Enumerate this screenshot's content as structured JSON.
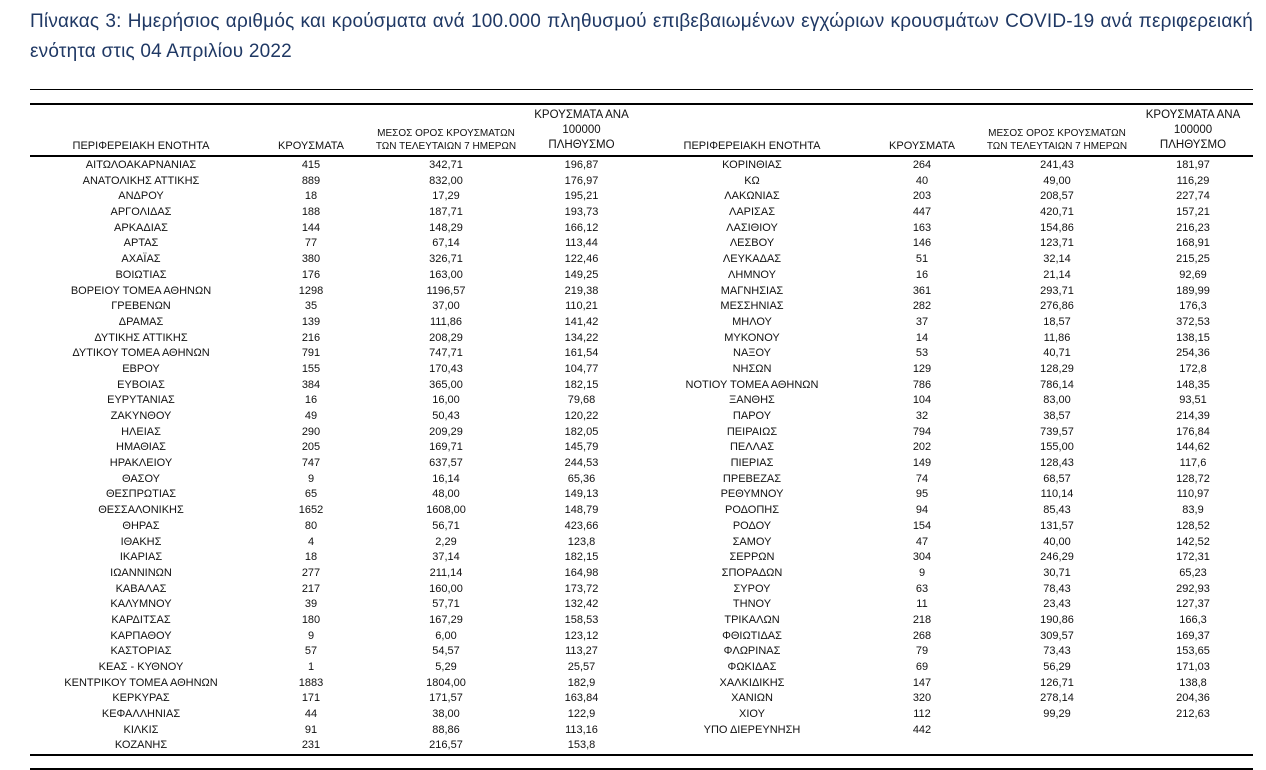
{
  "title": "Πίνακας 3:  Ημερήσιος αριθμός και κρούσματα ανά 100.000 πληθυσμού επιβεβαιωμένων εγχώριων κρουσμάτων COVID-19 ανά περιφερειακή ενότητα στις 04 Απριλίου 2022",
  "colors": {
    "title_text": "#1f3864",
    "body_text": "#111111",
    "rule": "#000000",
    "background": "#ffffff"
  },
  "table": {
    "headers": {
      "region": "ΠΕΡΙΦΕΡΕΙΑΚΗ ΕΝΟΤΗΤΑ",
      "cases": "ΚΡΟΥΣΜΑΤΑ",
      "avg7": "ΜΕΣΟΣ ΟΡΟΣ ΚΡΟΥΣΜΑΤΩΝ\nΤΩΝ ΤΕΛΕΥΤΑΙΩΝ 7 ΗΜΕΡΩΝ",
      "per100k": "ΚΡΟΥΣΜΑΤΑ ΑΝΑ 100000\nΠΛΗΘΥΣΜΟ"
    },
    "left_rows": [
      [
        "ΑΙΤΩΛΟΑΚΑΡΝΑΝΙΑΣ",
        "415",
        "342,71",
        "196,87"
      ],
      [
        "ΑΝΑΤΟΛΙΚΗΣ ΑΤΤΙΚΗΣ",
        "889",
        "832,00",
        "176,97"
      ],
      [
        "ΑΝΔΡΟΥ",
        "18",
        "17,29",
        "195,21"
      ],
      [
        "ΑΡΓΟΛΙΔΑΣ",
        "188",
        "187,71",
        "193,73"
      ],
      [
        "ΑΡΚΑΔΙΑΣ",
        "144",
        "148,29",
        "166,12"
      ],
      [
        "ΑΡΤΑΣ",
        "77",
        "67,14",
        "113,44"
      ],
      [
        "ΑΧΑΪΑΣ",
        "380",
        "326,71",
        "122,46"
      ],
      [
        "ΒΟΙΩΤΙΑΣ",
        "176",
        "163,00",
        "149,25"
      ],
      [
        "ΒΟΡΕΙΟΥ ΤΟΜΕΑ ΑΘΗΝΩΝ",
        "1298",
        "1196,57",
        "219,38"
      ],
      [
        "ΓΡΕΒΕΝΩΝ",
        "35",
        "37,00",
        "110,21"
      ],
      [
        "ΔΡΑΜΑΣ",
        "139",
        "111,86",
        "141,42"
      ],
      [
        "ΔΥΤΙΚΗΣ ΑΤΤΙΚΗΣ",
        "216",
        "208,29",
        "134,22"
      ],
      [
        "ΔΥΤΙΚΟΥ ΤΟΜΕΑ ΑΘΗΝΩΝ",
        "791",
        "747,71",
        "161,54"
      ],
      [
        "ΕΒΡΟΥ",
        "155",
        "170,43",
        "104,77"
      ],
      [
        "ΕΥΒΟΙΑΣ",
        "384",
        "365,00",
        "182,15"
      ],
      [
        "ΕΥΡΥΤΑΝΙΑΣ",
        "16",
        "16,00",
        "79,68"
      ],
      [
        "ΖΑΚΥΝΘΟΥ",
        "49",
        "50,43",
        "120,22"
      ],
      [
        "ΗΛΕΙΑΣ",
        "290",
        "209,29",
        "182,05"
      ],
      [
        "ΗΜΑΘΙΑΣ",
        "205",
        "169,71",
        "145,79"
      ],
      [
        "ΗΡΑΚΛΕΙΟΥ",
        "747",
        "637,57",
        "244,53"
      ],
      [
        "ΘΑΣΟΥ",
        "9",
        "16,14",
        "65,36"
      ],
      [
        "ΘΕΣΠΡΩΤΙΑΣ",
        "65",
        "48,00",
        "149,13"
      ],
      [
        "ΘΕΣΣΑΛΟΝΙΚΗΣ",
        "1652",
        "1608,00",
        "148,79"
      ],
      [
        "ΘΗΡΑΣ",
        "80",
        "56,71",
        "423,66"
      ],
      [
        "ΙΘΑΚΗΣ",
        "4",
        "2,29",
        "123,8"
      ],
      [
        "ΙΚΑΡΙΑΣ",
        "18",
        "37,14",
        "182,15"
      ],
      [
        "ΙΩΑΝΝΙΝΩΝ",
        "277",
        "211,14",
        "164,98"
      ],
      [
        "ΚΑΒΑΛΑΣ",
        "217",
        "160,00",
        "173,72"
      ],
      [
        "ΚΑΛΥΜΝΟΥ",
        "39",
        "57,71",
        "132,42"
      ],
      [
        "ΚΑΡΔΙΤΣΑΣ",
        "180",
        "167,29",
        "158,53"
      ],
      [
        "ΚΑΡΠΑΘΟΥ",
        "9",
        "6,00",
        "123,12"
      ],
      [
        "ΚΑΣΤΟΡΙΑΣ",
        "57",
        "54,57",
        "113,27"
      ],
      [
        "ΚΕΑΣ - ΚΥΘΝΟΥ",
        "1",
        "5,29",
        "25,57"
      ],
      [
        "ΚΕΝΤΡΙΚΟΥ ΤΟΜΕΑ ΑΘΗΝΩΝ",
        "1883",
        "1804,00",
        "182,9"
      ],
      [
        "ΚΕΡΚΥΡΑΣ",
        "171",
        "171,57",
        "163,84"
      ],
      [
        "ΚΕΦΑΛΛΗΝΙΑΣ",
        "44",
        "38,00",
        "122,9"
      ],
      [
        "ΚΙΛΚΙΣ",
        "91",
        "88,86",
        "113,16"
      ],
      [
        "ΚΟΖΑΝΗΣ",
        "231",
        "216,57",
        "153,8"
      ]
    ],
    "right_rows": [
      [
        "ΚΟΡΙΝΘΙΑΣ",
        "264",
        "241,43",
        "181,97"
      ],
      [
        "ΚΩ",
        "40",
        "49,00",
        "116,29"
      ],
      [
        "ΛΑΚΩΝΙΑΣ",
        "203",
        "208,57",
        "227,74"
      ],
      [
        "ΛΑΡΙΣΑΣ",
        "447",
        "420,71",
        "157,21"
      ],
      [
        "ΛΑΣΙΘΙΟΥ",
        "163",
        "154,86",
        "216,23"
      ],
      [
        "ΛΕΣΒΟΥ",
        "146",
        "123,71",
        "168,91"
      ],
      [
        "ΛΕΥΚΑΔΑΣ",
        "51",
        "32,14",
        "215,25"
      ],
      [
        "ΛΗΜΝΟΥ",
        "16",
        "21,14",
        "92,69"
      ],
      [
        "ΜΑΓΝΗΣΙΑΣ",
        "361",
        "293,71",
        "189,99"
      ],
      [
        "ΜΕΣΣΗΝΙΑΣ",
        "282",
        "276,86",
        "176,3"
      ],
      [
        "ΜΗΛΟΥ",
        "37",
        "18,57",
        "372,53"
      ],
      [
        "ΜΥΚΟΝΟΥ",
        "14",
        "11,86",
        "138,15"
      ],
      [
        "ΝΑΞΟΥ",
        "53",
        "40,71",
        "254,36"
      ],
      [
        "ΝΗΣΩΝ",
        "129",
        "128,29",
        "172,8"
      ],
      [
        "ΝΟΤΙΟΥ ΤΟΜΕΑ ΑΘΗΝΩΝ",
        "786",
        "786,14",
        "148,35"
      ],
      [
        "ΞΑΝΘΗΣ",
        "104",
        "83,00",
        "93,51"
      ],
      [
        "ΠΑΡΟΥ",
        "32",
        "38,57",
        "214,39"
      ],
      [
        "ΠΕΙΡΑΙΩΣ",
        "794",
        "739,57",
        "176,84"
      ],
      [
        "ΠΕΛΛΑΣ",
        "202",
        "155,00",
        "144,62"
      ],
      [
        "ΠΙΕΡΙΑΣ",
        "149",
        "128,43",
        "117,6"
      ],
      [
        "ΠΡΕΒΕΖΑΣ",
        "74",
        "68,57",
        "128,72"
      ],
      [
        "ΡΕΘΥΜΝΟΥ",
        "95",
        "110,14",
        "110,97"
      ],
      [
        "ΡΟΔΟΠΗΣ",
        "94",
        "85,43",
        "83,9"
      ],
      [
        "ΡΟΔΟΥ",
        "154",
        "131,57",
        "128,52"
      ],
      [
        "ΣΑΜΟΥ",
        "47",
        "40,00",
        "142,52"
      ],
      [
        "ΣΕΡΡΩΝ",
        "304",
        "246,29",
        "172,31"
      ],
      [
        "ΣΠΟΡΑΔΩΝ",
        "9",
        "30,71",
        "65,23"
      ],
      [
        "ΣΥΡΟΥ",
        "63",
        "78,43",
        "292,93"
      ],
      [
        "ΤΗΝΟΥ",
        "11",
        "23,43",
        "127,37"
      ],
      [
        "ΤΡΙΚΑΛΩΝ",
        "218",
        "190,86",
        "166,3"
      ],
      [
        "ΦΘΙΩΤΙΔΑΣ",
        "268",
        "309,57",
        "169,37"
      ],
      [
        "ΦΛΩΡΙΝΑΣ",
        "79",
        "73,43",
        "153,65"
      ],
      [
        "ΦΩΚΙΔΑΣ",
        "69",
        "56,29",
        "171,03"
      ],
      [
        "ΧΑΛΚΙΔΙΚΗΣ",
        "147",
        "126,71",
        "138,8"
      ],
      [
        "ΧΑΝΙΩΝ",
        "320",
        "278,14",
        "204,36"
      ],
      [
        "ΧΙΟΥ",
        "112",
        "99,29",
        "212,63"
      ],
      [
        "ΥΠΟ ΔΙΕΡΕΥΝΗΣΗ",
        "442",
        "",
        ""
      ]
    ]
  }
}
